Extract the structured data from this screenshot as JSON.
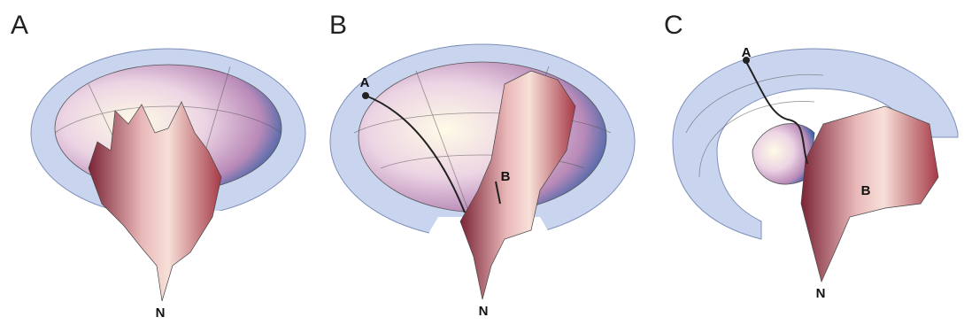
{
  "panels": [
    {
      "label": "A",
      "points": [
        "N"
      ]
    },
    {
      "label": "B",
      "points": [
        "A",
        "B",
        "N"
      ]
    },
    {
      "label": "C",
      "points": [
        "A",
        "B",
        "N"
      ]
    }
  ]
}
